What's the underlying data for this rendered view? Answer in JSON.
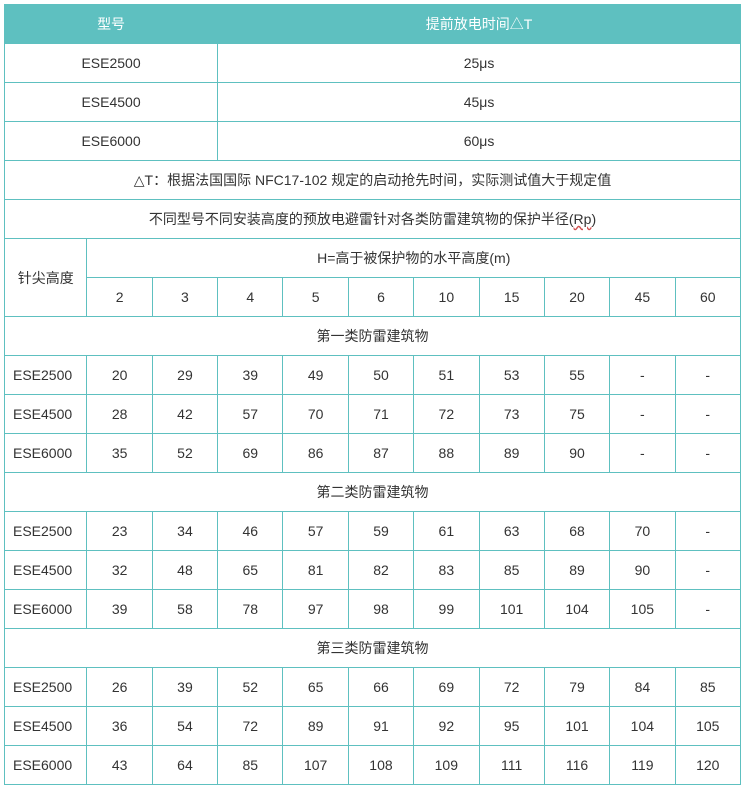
{
  "colors": {
    "header_bg": "#5ec0c0",
    "header_text": "#ffffff",
    "border": "#5ec0c0",
    "text": "#333333",
    "bg": "#ffffff"
  },
  "top_headers": {
    "model": "型号",
    "dt": "提前放电时间△T"
  },
  "models": [
    {
      "name": "ESE2500",
      "dt": "25μs"
    },
    {
      "name": "ESE4500",
      "dt": "45μs"
    },
    {
      "name": "ESE6000",
      "dt": "60μs"
    }
  ],
  "note_dt": "△T：根据法国国际 NFC17-102 规定的启动抢先时间，实际测试值大于规定值",
  "note_rp_a": "不同型号不同安装高度的预放电避雷针对各类防雷建筑物的保护半径(",
  "note_rp_b": "Rp",
  "note_rp_c": ")",
  "tip_height": "针尖高度",
  "h_header": "H=高于被保护物的水平高度(m)",
  "heights": [
    "2",
    "3",
    "4",
    "5",
    "6",
    "10",
    "15",
    "20",
    "45",
    "60"
  ],
  "groups": [
    {
      "title": "第一类防雷建筑物",
      "rows": [
        {
          "name": "ESE2500",
          "v": [
            "20",
            "29",
            "39",
            "49",
            "50",
            "51",
            "53",
            "55",
            "-",
            "-"
          ]
        },
        {
          "name": "ESE4500",
          "v": [
            "28",
            "42",
            "57",
            "70",
            "71",
            "72",
            "73",
            "75",
            "-",
            "-"
          ]
        },
        {
          "name": "ESE6000",
          "v": [
            "35",
            "52",
            "69",
            "86",
            "87",
            "88",
            "89",
            "90",
            "-",
            "-"
          ]
        }
      ]
    },
    {
      "title": "第二类防雷建筑物",
      "rows": [
        {
          "name": "ESE2500",
          "v": [
            "23",
            "34",
            "46",
            "57",
            "59",
            "61",
            "63",
            "68",
            "70",
            "-"
          ]
        },
        {
          "name": "ESE4500",
          "v": [
            "32",
            "48",
            "65",
            "81",
            "82",
            "83",
            "85",
            "89",
            "90",
            "-"
          ]
        },
        {
          "name": "ESE6000",
          "v": [
            "39",
            "58",
            "78",
            "97",
            "98",
            "99",
            "101",
            "104",
            "105",
            "-"
          ]
        }
      ]
    },
    {
      "title": "第三类防雷建筑物",
      "rows": [
        {
          "name": "ESE2500",
          "v": [
            "26",
            "39",
            "52",
            "65",
            "66",
            "69",
            "72",
            "79",
            "84",
            "85"
          ]
        },
        {
          "name": "ESE4500",
          "v": [
            "36",
            "54",
            "72",
            "89",
            "91",
            "92",
            "95",
            "101",
            "104",
            "105"
          ]
        },
        {
          "name": "ESE6000",
          "v": [
            "43",
            "64",
            "85",
            "107",
            "108",
            "109",
            "111",
            "116",
            "119",
            "120"
          ]
        }
      ]
    }
  ]
}
